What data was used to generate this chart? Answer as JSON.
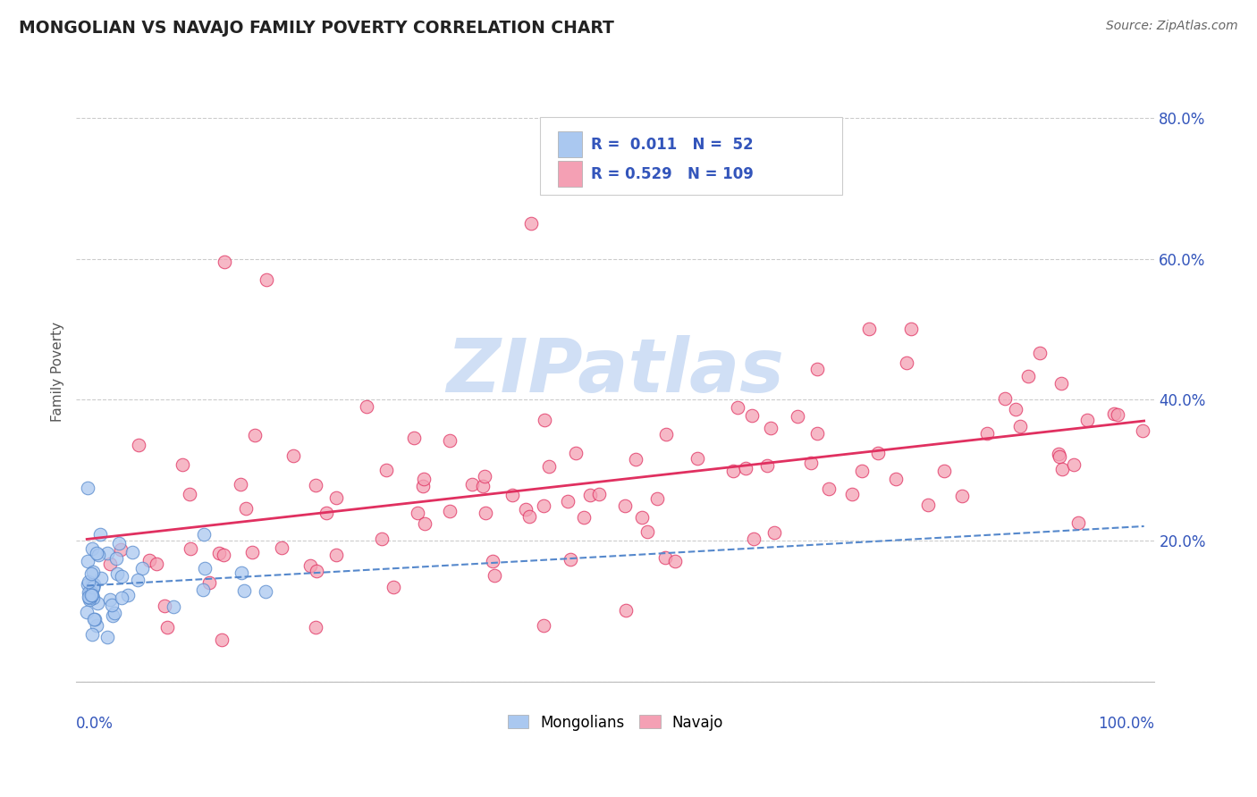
{
  "title": "MONGOLIAN VS NAVAJO FAMILY POVERTY CORRELATION CHART",
  "source": "Source: ZipAtlas.com",
  "ylabel": "Family Poverty",
  "mongolian_R": 0.011,
  "mongolian_N": 52,
  "navajo_R": 0.529,
  "navajo_N": 109,
  "mongolian_color": "#aac8f0",
  "navajo_color": "#f4a0b4",
  "mongolian_line_color": "#5588cc",
  "navajo_line_color": "#e03060",
  "legend_text_color": "#3355bb",
  "watermark_color": "#d0dff5",
  "background_color": "#ffffff",
  "grid_color": "#cccccc",
  "title_color": "#222222",
  "axis_label_color": "#3355bb",
  "y_ticks": [
    0.0,
    0.2,
    0.4,
    0.6,
    0.8
  ],
  "y_labels": [
    "",
    "20.0%",
    "40.0%",
    "60.0%",
    "80.0%"
  ],
  "xlim": [
    0.0,
    1.0
  ],
  "ylim": [
    0.0,
    0.88
  ]
}
